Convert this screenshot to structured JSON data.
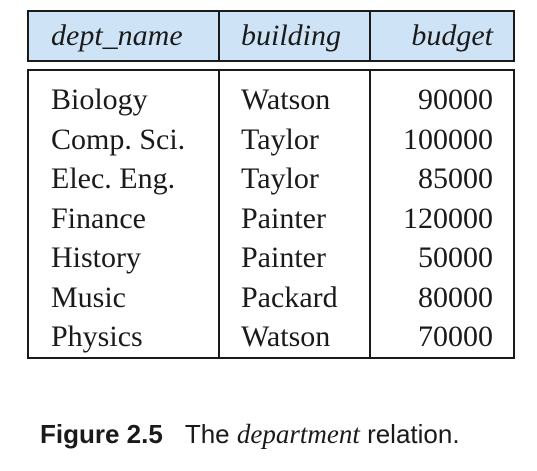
{
  "table": {
    "headers": [
      "dept_name",
      "building",
      "budget"
    ],
    "rows": [
      [
        "Biology",
        "Watson",
        "90000"
      ],
      [
        "Comp. Sci.",
        "Taylor",
        "100000"
      ],
      [
        "Elec. Eng.",
        "Taylor",
        "85000"
      ],
      [
        "Finance",
        "Painter",
        "120000"
      ],
      [
        "History",
        "Painter",
        "50000"
      ],
      [
        "Music",
        "Packard",
        "80000"
      ],
      [
        "Physics",
        "Watson",
        "70000"
      ]
    ],
    "header_bg": "#cfe3f7"
  },
  "caption": {
    "label": "Figure 2.5",
    "prefix": "The ",
    "italic": "department",
    "suffix": " relation."
  }
}
